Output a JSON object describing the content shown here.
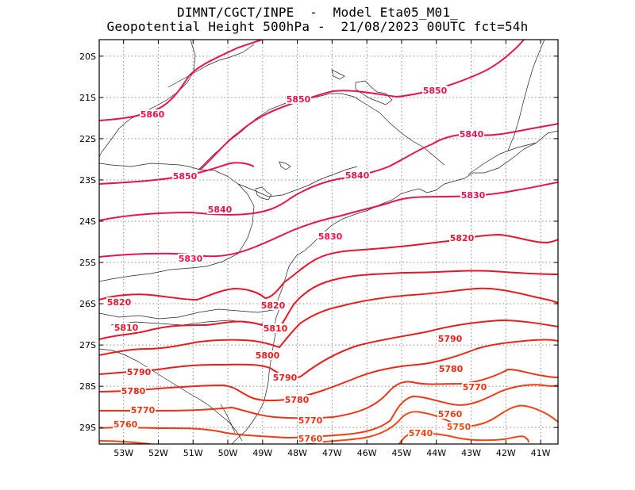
{
  "header": {
    "title_line1": "DIMNT/CGCT/INPE  -  Model Eta05_M01_",
    "title_line2": "Geopotential Height 500hPa -  21/08/2023 00UTC fct=54h"
  },
  "map": {
    "lon_range": [
      -53.7,
      -40.5
    ],
    "lat_range": [
      -29.4,
      -19.6
    ],
    "lat_ticks": [
      "20S",
      "21S",
      "22S",
      "23S",
      "24S",
      "25S",
      "26S",
      "27S",
      "28S",
      "29S"
    ],
    "lon_ticks": [
      "53W",
      "52W",
      "51W",
      "50W",
      "49W",
      "48W",
      "47W",
      "46W",
      "45W",
      "44W",
      "43W",
      "42W",
      "41W"
    ],
    "grid": true
  },
  "contour_labels": [
    {
      "text": "5860",
      "color": "#e8144f"
    },
    {
      "text": "5850",
      "color": "#e8144f"
    },
    {
      "text": "5850",
      "color": "#e8144f"
    },
    {
      "text": "5850",
      "color": "#e8144f"
    },
    {
      "text": "5840",
      "color": "#e8144f"
    },
    {
      "text": "5840",
      "color": "#e8144f"
    },
    {
      "text": "5840",
      "color": "#e8144f"
    },
    {
      "text": "5830",
      "color": "#e8144f"
    },
    {
      "text": "5830",
      "color": "#e8144f"
    },
    {
      "text": "5830",
      "color": "#e8144f"
    },
    {
      "text": "5820",
      "color": "#e8142e"
    },
    {
      "text": "5820",
      "color": "#e8142e"
    },
    {
      "text": "5820",
      "color": "#e8142e"
    },
    {
      "text": "5810",
      "color": "#e81428"
    },
    {
      "text": "5810",
      "color": "#e81428"
    },
    {
      "text": "5800",
      "color": "#e81e1e"
    },
    {
      "text": "5790",
      "color": "#e81e1e"
    },
    {
      "text": "5790",
      "color": "#e81e1e"
    },
    {
      "text": "5790",
      "color": "#e81e1e"
    },
    {
      "text": "5780",
      "color": "#ec2814"
    },
    {
      "text": "5780",
      "color": "#ec2814"
    },
    {
      "text": "5780",
      "color": "#ec2814"
    },
    {
      "text": "5770",
      "color": "#f03214"
    },
    {
      "text": "5770",
      "color": "#f03214"
    },
    {
      "text": "5770",
      "color": "#f03214"
    },
    {
      "text": "5760",
      "color": "#f03c14"
    },
    {
      "text": "5760",
      "color": "#f03c14"
    },
    {
      "text": "5760",
      "color": "#f03c14"
    },
    {
      "text": "5750",
      "color": "#f04614"
    },
    {
      "text": "5740",
      "color": "#f04614"
    }
  ],
  "colors": {
    "high": "#e8144f",
    "mid": "#e81e1e",
    "low": "#f04614",
    "coast": "#000000",
    "grid": "#8a8a8a"
  }
}
